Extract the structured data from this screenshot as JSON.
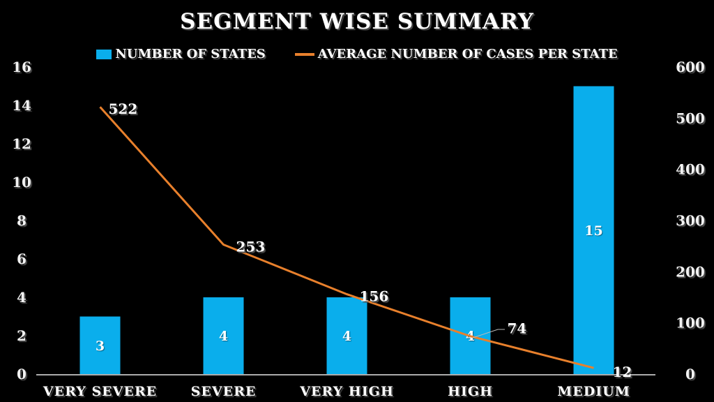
{
  "title": "SEGMENT WISE SUMMARY",
  "chart_data": {
    "type": "combo",
    "title": "SEGMENT WISE SUMMARY",
    "categories": [
      "VERY SEVERE",
      "SEVERE",
      "VERY HIGH",
      "HIGH",
      "MEDIUM"
    ],
    "series": [
      {
        "name": "NUMBER OF STATES",
        "type": "bar",
        "axis": "left",
        "color": "#0aaeec",
        "values": [
          3,
          4,
          4,
          4,
          15
        ]
      },
      {
        "name": "AVERAGE NUMBER OF CASES PER STATE",
        "type": "line",
        "axis": "right",
        "color": "#e8802c",
        "values": [
          522,
          253,
          156,
          74,
          12
        ]
      }
    ],
    "left_axis": {
      "min": 0,
      "max": 16,
      "step": 2,
      "ticks": [
        0,
        2,
        4,
        6,
        8,
        10,
        12,
        14,
        16
      ]
    },
    "right_axis": {
      "min": 0,
      "max": 600,
      "step": 100,
      "ticks": [
        0,
        100,
        200,
        300,
        400,
        500,
        600
      ]
    },
    "background": "#000000",
    "text_color": "#ffffff",
    "axis_line_color": "#e6e6e6",
    "grid": false,
    "legend_position": "top",
    "data_labels_shown": true
  }
}
